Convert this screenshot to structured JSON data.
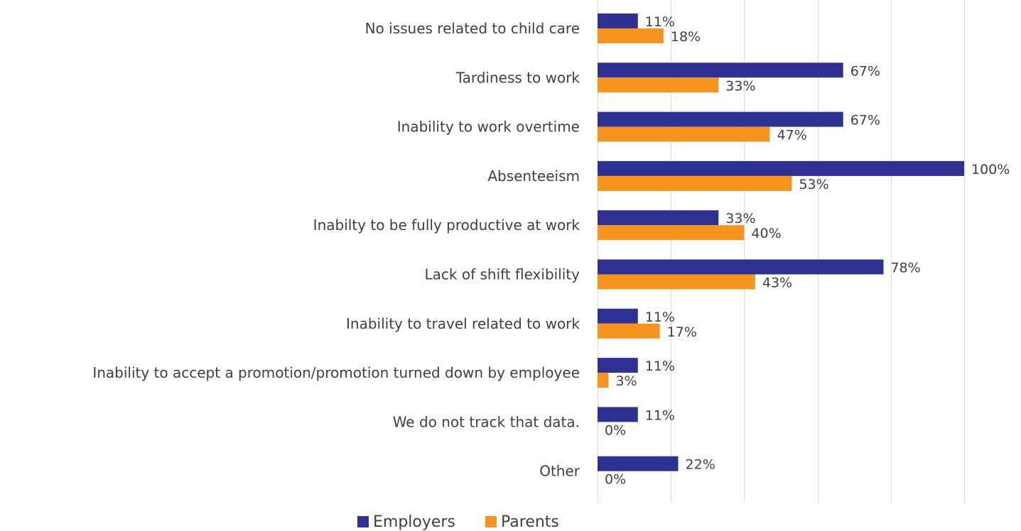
{
  "chart_data": {
    "type": "bar",
    "orientation": "horizontal",
    "categories": [
      "No issues related to child care",
      "Tardiness to work",
      "Inability to work overtime",
      "Absenteeism",
      "Inabilty to be fully productive at work",
      "Lack of shift flexibility",
      "Inability to travel related to work",
      "Inability to accept a promotion/promotion turned down by employee",
      "We do not track that data.",
      "Other"
    ],
    "series": [
      {
        "name": "Employers",
        "color": "#2E3192",
        "values": [
          11,
          67,
          67,
          100,
          33,
          78,
          11,
          11,
          11,
          22
        ],
        "labels": [
          "11%",
          "67%",
          "67%",
          "100%",
          "33%",
          "78%",
          "11%",
          "11%",
          "11%",
          "22%"
        ]
      },
      {
        "name": "Parents",
        "color": "#F7941D",
        "values": [
          18,
          33,
          47,
          53,
          40,
          43,
          17,
          3,
          0,
          0
        ],
        "labels": [
          "18%",
          "33%",
          "47%",
          "53%",
          "40%",
          "43%",
          "17%",
          "3%",
          "0%",
          "0%"
        ]
      }
    ],
    "xlim": [
      0,
      100
    ],
    "grid": true,
    "legend_position": "bottom"
  }
}
